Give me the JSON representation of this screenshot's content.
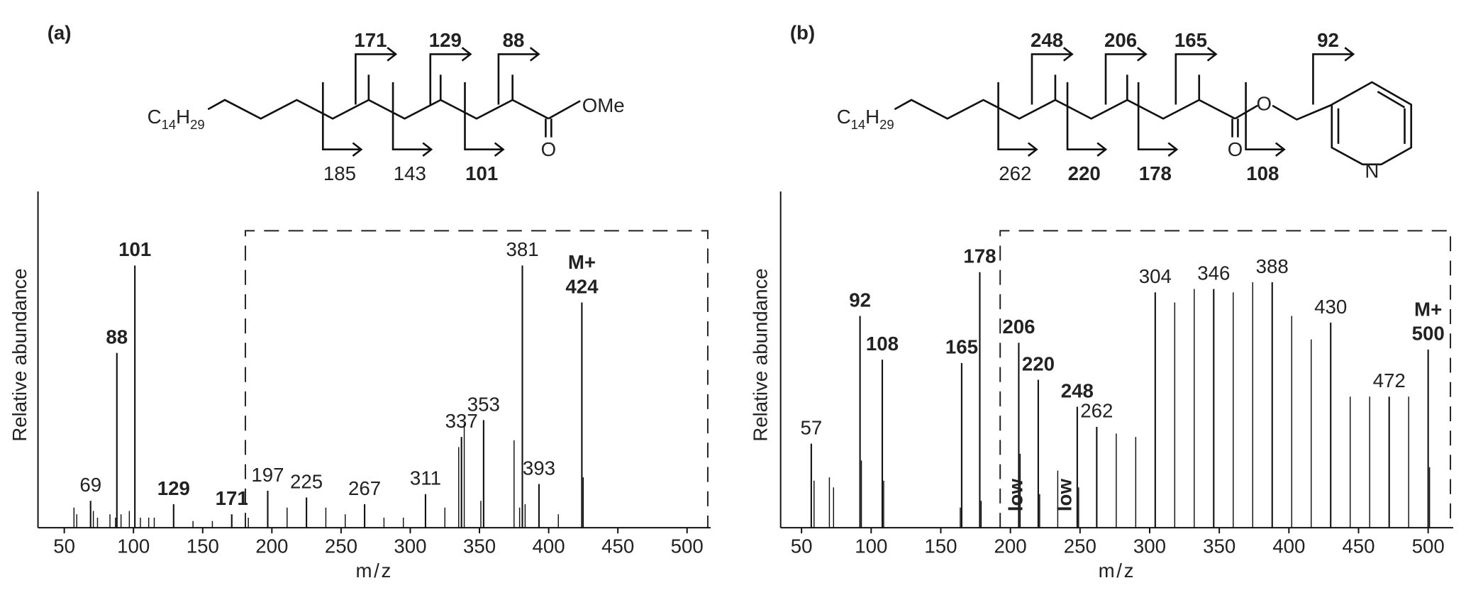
{
  "chart_data": [
    {
      "type": "bar",
      "panel_label": "(a)",
      "x_label": "m/z",
      "y_label": "Relative abundance",
      "xlim": [
        31,
        517
      ],
      "ylim": [
        0,
        100
      ],
      "xticks": [
        50,
        100,
        150,
        200,
        250,
        300,
        350,
        400,
        450,
        500
      ],
      "series": [
        {
          "label_weight": "bold",
          "x": [
            88,
            101,
            129,
            171
          ],
          "values": [
            52,
            78,
            7,
            4
          ]
        },
        {
          "label_weight": "normal",
          "x": [
            69,
            197,
            225,
            267,
            311,
            337,
            353,
            381,
            393
          ],
          "values": [
            8,
            11,
            9,
            7,
            10,
            27,
            32,
            78,
            13
          ]
        },
        {
          "label_prefix": "M+",
          "label_weight": "bold",
          "x": [
            424
          ],
          "values": [
            67
          ]
        },
        {
          "x": [
            57,
            59,
            71,
            74,
            83,
            87,
            91,
            97,
            105,
            111,
            115,
            143,
            157,
            183,
            211,
            239,
            253,
            281,
            295,
            325,
            335,
            339,
            351,
            375,
            379,
            383,
            407,
            425
          ],
          "values": [
            6,
            4,
            5,
            3,
            4,
            3,
            4,
            5,
            3,
            3,
            3,
            2,
            2,
            3,
            6,
            6,
            4,
            3,
            3,
            6,
            24,
            31,
            8,
            26,
            6,
            7,
            4,
            15
          ]
        }
      ],
      "structure": {
        "chain_label": [
          "C",
          "14",
          "H",
          "29"
        ],
        "carbonyl_oxygen": "O",
        "end_group": "OMe",
        "fragments_top": [
          {
            "value": 171,
            "bold": true
          },
          {
            "value": 129,
            "bold": true
          },
          {
            "value": 88,
            "bold": true
          }
        ],
        "fragments_bottom": [
          {
            "value": 185,
            "bold": false
          },
          {
            "value": 143,
            "bold": false
          },
          {
            "value": 101,
            "bold": true
          }
        ]
      }
    },
    {
      "type": "bar",
      "panel_label": "(b)",
      "x_label": "m/z",
      "y_label": "Relative abundance",
      "xlim": [
        35,
        518
      ],
      "ylim": [
        0,
        100
      ],
      "xticks": [
        50,
        100,
        150,
        200,
        250,
        300,
        350,
        400,
        450,
        500
      ],
      "series": [
        {
          "label_weight": "bold",
          "x": [
            92,
            108,
            165,
            178,
            206,
            220,
            248
          ],
          "values": [
            63,
            50,
            49,
            76,
            55,
            44,
            36
          ]
        },
        {
          "label_weight": "normal",
          "x": [
            57,
            262,
            304,
            346,
            388,
            430,
            472
          ],
          "values": [
            25,
            30,
            70,
            71,
            73,
            61,
            39
          ]
        },
        {
          "label_prefix": "M+",
          "label_weight": "bold",
          "x": [
            500
          ],
          "values": [
            53
          ]
        },
        {
          "x": [
            59,
            70,
            73,
            93,
            109,
            164,
            179,
            207,
            221,
            234,
            249,
            276,
            290,
            318,
            332,
            360,
            374,
            402,
            416,
            444,
            458,
            486,
            501
          ],
          "values": [
            14,
            15,
            12,
            20,
            14,
            6,
            8,
            22,
            10,
            17,
            12,
            28,
            27,
            67,
            71,
            70,
            73,
            63,
            56,
            39,
            39,
            39,
            18
          ]
        }
      ],
      "annotations": [
        {
          "text": "low",
          "x": 205
        },
        {
          "text": "low",
          "x": 240
        }
      ],
      "structure": {
        "chain_label": [
          "C",
          "14",
          "H",
          "29"
        ],
        "carbonyl_oxygen": "O",
        "ester_oxygen": "O",
        "ring_nitrogen": "N",
        "fragments_top": [
          {
            "value": 248,
            "bold": true
          },
          {
            "value": 206,
            "bold": true
          },
          {
            "value": 165,
            "bold": true
          },
          {
            "value": 92,
            "bold": true
          }
        ],
        "fragments_bottom": [
          {
            "value": 262,
            "bold": false
          },
          {
            "value": 220,
            "bold": true
          },
          {
            "value": 178,
            "bold": true
          },
          {
            "value": 108,
            "bold": true
          }
        ]
      }
    }
  ]
}
